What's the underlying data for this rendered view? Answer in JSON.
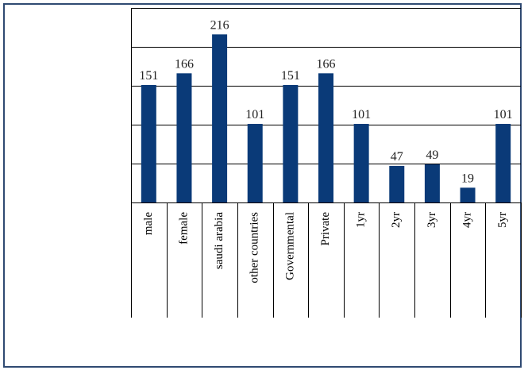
{
  "chart_data": {
    "type": "bar",
    "categories": [
      "male",
      "female",
      "saudi arabia",
      "other countries",
      "Governmental",
      "Private",
      "1yr",
      "2yr",
      "3yr",
      "4yr",
      "5yr"
    ],
    "values": [
      151,
      166,
      216,
      101,
      151,
      166,
      101,
      47,
      49,
      19,
      101
    ],
    "ylim": [
      0,
      250
    ],
    "grid_step": 50,
    "grid": true,
    "legend": "none",
    "colors": {
      "bar": "#0a3a78",
      "frame": "#2f4a72"
    }
  }
}
